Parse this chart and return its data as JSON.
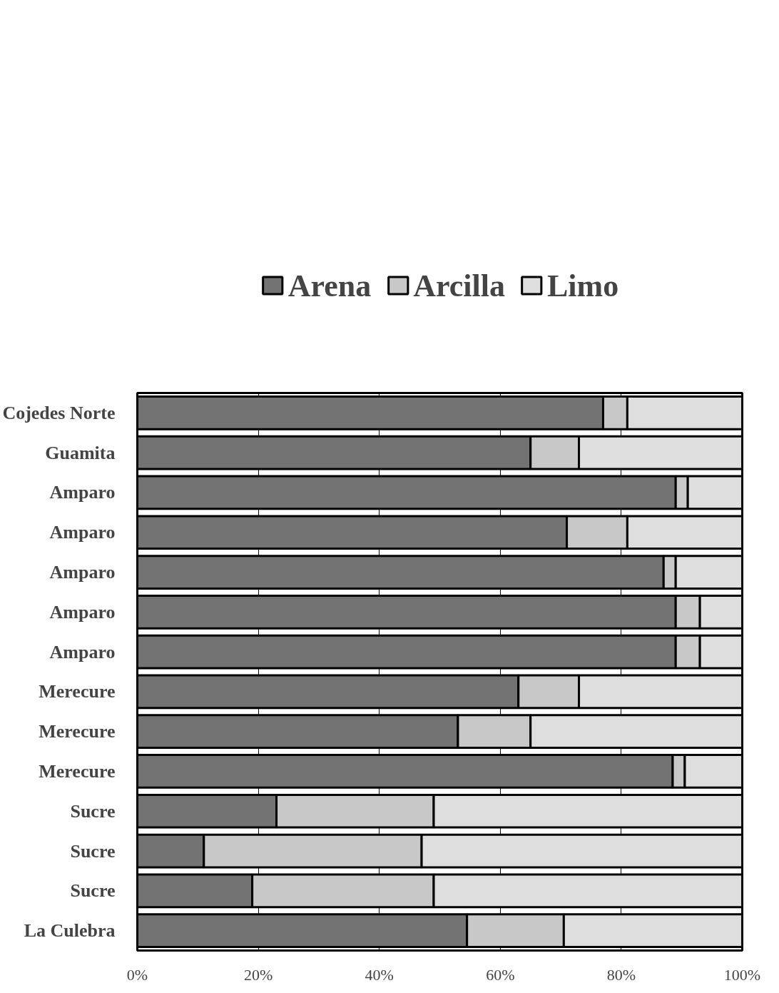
{
  "chart_data": {
    "type": "bar",
    "orientation": "horizontal",
    "stacked": true,
    "categories": [
      "Cojedes Norte",
      "Guamita",
      "Amparo",
      "Amparo",
      "Amparo",
      "Amparo",
      "Amparo",
      "Merecure",
      "Merecure",
      "Merecure",
      "Sucre",
      "Sucre",
      "Sucre",
      "La Culebra"
    ],
    "series": [
      {
        "name": "Arena",
        "color": "#737373",
        "values": [
          77,
          65,
          89,
          71,
          87,
          89,
          89,
          63,
          53,
          88.5,
          23,
          11,
          19,
          54.5
        ]
      },
      {
        "name": "Arcilla",
        "color": "#c8c8c8",
        "values": [
          4,
          8,
          2,
          10,
          2,
          4,
          4,
          10,
          12,
          2,
          26,
          36,
          30,
          16
        ]
      },
      {
        "name": "Limo",
        "color": "#dedede",
        "values": [
          19,
          27,
          9,
          19,
          11,
          7,
          7,
          27,
          35,
          9.5,
          51,
          53,
          51,
          29.5
        ]
      }
    ],
    "xlim": [
      0,
      100
    ],
    "xticks": [
      {
        "value": 0,
        "label": "0%"
      },
      {
        "value": 20,
        "label": "20%"
      },
      {
        "value": 40,
        "label": "40%"
      },
      {
        "value": 60,
        "label": "60%"
      },
      {
        "value": 80,
        "label": "80%"
      },
      {
        "value": 100,
        "label": "100%"
      }
    ],
    "grid": "x",
    "legend": "top"
  }
}
